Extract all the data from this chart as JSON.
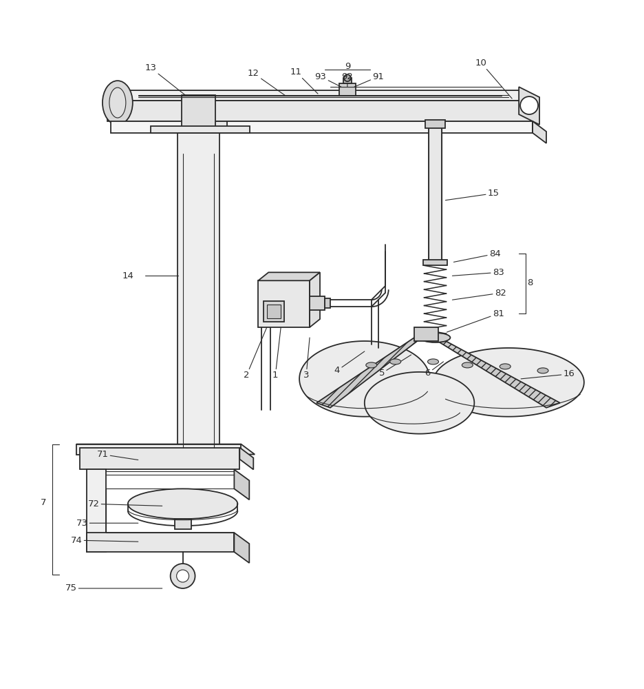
{
  "bg_color": "#ffffff",
  "line_color": "#2a2a2a",
  "figsize": [
    9.36,
    10.0
  ],
  "dpi": 100,
  "lw_main": 1.3,
  "lw_thin": 0.8
}
